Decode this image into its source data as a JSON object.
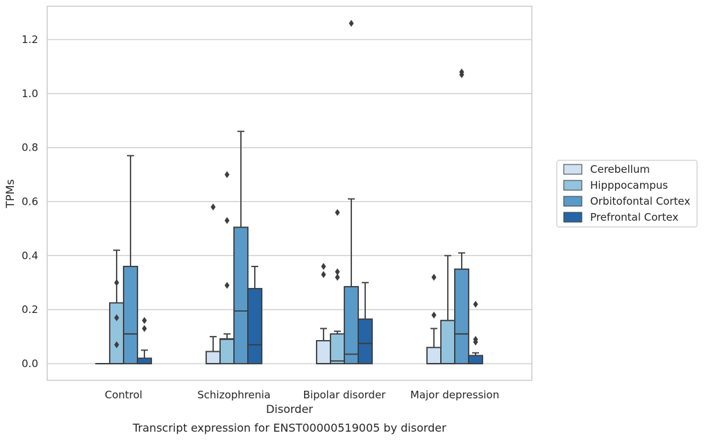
{
  "chart_data": {
    "type": "boxplot",
    "title": "",
    "caption": "Transcript expression for ENST00000519005 by disorder",
    "xlabel": "Disorder",
    "ylabel": "TPMs",
    "ylim": [
      -0.06,
      1.32
    ],
    "yticks": [
      0.0,
      0.2,
      0.4,
      0.6,
      0.8,
      1.0,
      1.2
    ],
    "ytick_labels": [
      "0.0",
      "0.2",
      "0.4",
      "0.6",
      "0.8",
      "1.0",
      "1.2"
    ],
    "grid": "horizontal",
    "legend_placement": "right",
    "categories": [
      "Control",
      "Schizophrenia",
      "Bipolar disorder",
      "Major depression"
    ],
    "series": [
      {
        "name": "Cerebellum",
        "color": "#cfe1f2",
        "boxes": [
          {
            "q1": 0.0,
            "median": 0.0,
            "q3": 0.0,
            "whisker_low": 0.0,
            "whisker_high": 0.0,
            "fliers": []
          },
          {
            "q1": 0.0,
            "median": 0.0,
            "q3": 0.045,
            "whisker_low": 0.0,
            "whisker_high": 0.1,
            "fliers": [
              0.58
            ]
          },
          {
            "q1": 0.0,
            "median": 0.0,
            "q3": 0.085,
            "whisker_low": 0.0,
            "whisker_high": 0.13,
            "fliers": [
              0.33,
              0.36
            ]
          },
          {
            "q1": 0.0,
            "median": 0.0,
            "q3": 0.06,
            "whisker_low": 0.0,
            "whisker_high": 0.13,
            "fliers": [
              0.18,
              0.32
            ]
          }
        ]
      },
      {
        "name": "Hipppocampus",
        "color": "#93c4de",
        "boxes": [
          {
            "q1": 0.0,
            "median": 0.0,
            "q3": 0.225,
            "whisker_low": 0.0,
            "whisker_high": 0.42,
            "fliers": [
              0.07,
              0.17,
              0.3
            ]
          },
          {
            "q1": 0.0,
            "median": 0.09,
            "q3": 0.092,
            "whisker_low": 0.0,
            "whisker_high": 0.11,
            "fliers": [
              0.29,
              0.53,
              0.7
            ]
          },
          {
            "q1": 0.0,
            "median": 0.01,
            "q3": 0.11,
            "whisker_low": 0.0,
            "whisker_high": 0.12,
            "fliers": [
              0.32,
              0.34,
              0.56
            ]
          },
          {
            "q1": 0.0,
            "median": 0.0,
            "q3": 0.16,
            "whisker_low": 0.0,
            "whisker_high": 0.4,
            "fliers": []
          }
        ]
      },
      {
        "name": "Orbitofontal Cortex",
        "color": "#5a9ac8",
        "boxes": [
          {
            "q1": 0.0,
            "median": 0.11,
            "q3": 0.36,
            "whisker_low": 0.0,
            "whisker_high": 0.77,
            "fliers": []
          },
          {
            "q1": 0.0,
            "median": 0.195,
            "q3": 0.505,
            "whisker_low": 0.0,
            "whisker_high": 0.86,
            "fliers": []
          },
          {
            "q1": 0.0,
            "median": 0.035,
            "q3": 0.285,
            "whisker_low": 0.0,
            "whisker_high": 0.61,
            "fliers": [
              1.26
            ]
          },
          {
            "q1": 0.0,
            "median": 0.11,
            "q3": 0.35,
            "whisker_low": 0.0,
            "whisker_high": 0.41,
            "fliers": [
              1.07,
              1.08
            ]
          }
        ]
      },
      {
        "name": "Prefrontal Cortex",
        "color": "#2565a6",
        "boxes": [
          {
            "q1": 0.0,
            "median": 0.0,
            "q3": 0.02,
            "whisker_low": 0.0,
            "whisker_high": 0.05,
            "fliers": [
              0.13,
              0.16
            ]
          },
          {
            "q1": 0.0,
            "median": 0.07,
            "q3": 0.278,
            "whisker_low": 0.0,
            "whisker_high": 0.36,
            "fliers": []
          },
          {
            "q1": 0.0,
            "median": 0.075,
            "q3": 0.165,
            "whisker_low": 0.0,
            "whisker_high": 0.3,
            "fliers": []
          },
          {
            "q1": 0.0,
            "median": 0.0,
            "q3": 0.03,
            "whisker_low": 0.0,
            "whisker_high": 0.04,
            "fliers": [
              0.08,
              0.09,
              0.22
            ]
          }
        ]
      }
    ]
  }
}
